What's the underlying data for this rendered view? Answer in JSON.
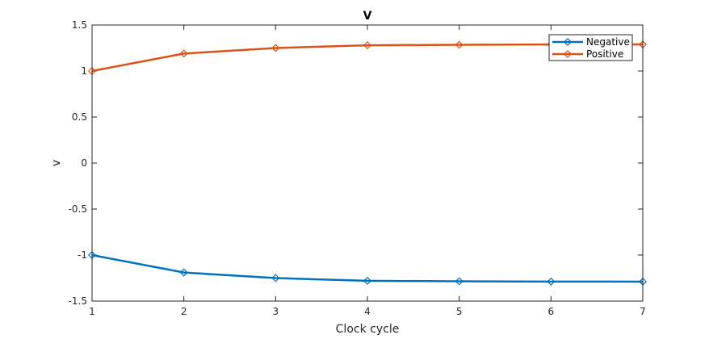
{
  "chart_data": {
    "type": "line",
    "title": "V",
    "xlabel": "Clock cycle",
    "ylabel": "v",
    "xlim": [
      1,
      7
    ],
    "ylim": [
      -1.5,
      1.5
    ],
    "xticks": [
      "1",
      "2",
      "3",
      "4",
      "5",
      "6",
      "7"
    ],
    "yticks": [
      "-1.5",
      "-1",
      "-0.5",
      "0",
      "0.5",
      "1",
      "1.5"
    ],
    "grid": false,
    "legend_position": "top-right",
    "x": [
      1,
      2,
      3,
      4,
      5,
      6,
      7
    ],
    "series": [
      {
        "name": "Negative",
        "color": "#0072BD",
        "marker": "diamond",
        "values": [
          -1.0,
          -1.19,
          -1.25,
          -1.28,
          -1.285,
          -1.288,
          -1.289
        ]
      },
      {
        "name": "Positive",
        "color": "#D95319",
        "marker": "diamond",
        "values": [
          1.0,
          1.19,
          1.25,
          1.28,
          1.285,
          1.288,
          1.289
        ]
      }
    ]
  }
}
